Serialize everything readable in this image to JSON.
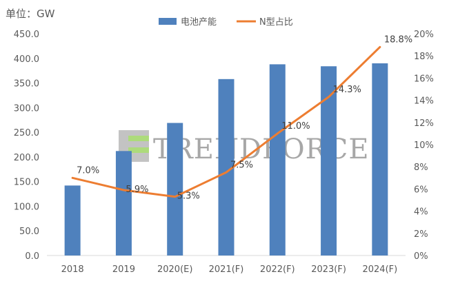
{
  "unit_label": "单位：GW",
  "watermark_text": "TRENDFORCE",
  "colors": {
    "bar": "#4f81bd",
    "line": "#ed7d31",
    "axis": "#d9d9d9",
    "text": "#595959",
    "watermark": "#8a8a8a",
    "watermark_accent": "#92d050"
  },
  "chart_data": {
    "type": "bar",
    "categories": [
      "2018",
      "2019",
      "2020(E)",
      "2021(F)",
      "2022(F)",
      "2023(F)",
      "2024(F)"
    ],
    "series": [
      {
        "name": "电池产能",
        "type": "bar",
        "axis": "left",
        "values": [
          142,
          212,
          269,
          358,
          388,
          384,
          390
        ]
      },
      {
        "name": "N型占比",
        "type": "line",
        "axis": "right",
        "values": [
          7.0,
          5.9,
          5.3,
          7.5,
          11.0,
          14.3,
          18.8
        ],
        "labels": [
          "7.0%",
          "5.9%",
          "5.3%",
          "7.5%",
          "11.0%",
          "14.3%",
          "18.8%"
        ]
      }
    ],
    "y_left": {
      "min": 0,
      "max": 450,
      "step": 50,
      "tick_labels": [
        "0.0",
        "50.0",
        "100.0",
        "150.0",
        "200.0",
        "250.0",
        "300.0",
        "350.0",
        "400.0",
        "450.0"
      ]
    },
    "y_right": {
      "min": 0,
      "max": 20,
      "step": 2,
      "tick_labels": [
        "0%",
        "2%",
        "4%",
        "6%",
        "8%",
        "10%",
        "12%",
        "14%",
        "16%",
        "18%",
        "20%"
      ]
    },
    "legend": "top-center",
    "grid": false
  }
}
